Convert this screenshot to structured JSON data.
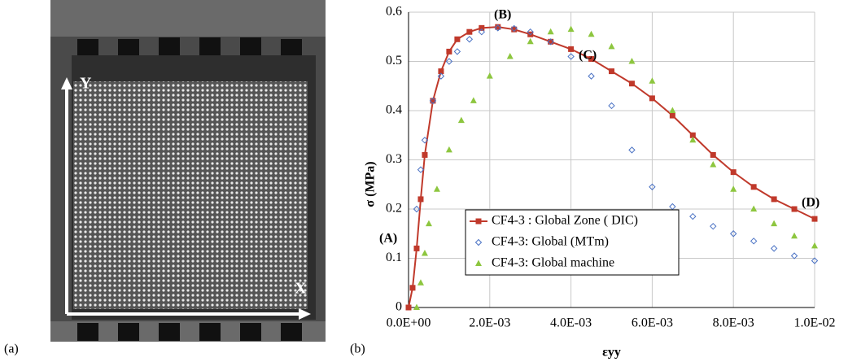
{
  "panel_a": {
    "label": "(a)",
    "axis_x": "X",
    "axis_y": "Y"
  },
  "chart_data": {
    "type": "scatter",
    "panel_label": "(b)",
    "x_label": "εyy",
    "y_label": "σ (MPa)",
    "annotations": [
      "(A)",
      "(B)",
      "(C)",
      "(D)"
    ],
    "xlim": [
      0,
      0.01
    ],
    "ylim": [
      0,
      0.6
    ],
    "xticks": [
      {
        "value": 0,
        "label": "0.0E+00"
      },
      {
        "value": 0.002,
        "label": "2.0E-03"
      },
      {
        "value": 0.004,
        "label": "4.0E-03"
      },
      {
        "value": 0.006,
        "label": "6.0E-03"
      },
      {
        "value": 0.008,
        "label": "8.0E-03"
      },
      {
        "value": 0.01,
        "label": "1.0E-02"
      }
    ],
    "yticks": [
      0,
      0.1,
      0.2,
      0.3,
      0.4,
      0.5,
      0.6
    ],
    "grid": true,
    "legend": "lower left",
    "series": [
      {
        "name": "CF4-3 : Global Zone ( DIC)",
        "color": "#c0392b",
        "marker": "square",
        "line": true,
        "x": [
          0,
          0.0001,
          0.0002,
          0.0003,
          0.0004,
          0.0006,
          0.0008,
          0.001,
          0.0012,
          0.0015,
          0.0018,
          0.0022,
          0.0026,
          0.003,
          0.0035,
          0.004,
          0.0045,
          0.005,
          0.0055,
          0.006,
          0.0065,
          0.007,
          0.0075,
          0.008,
          0.0085,
          0.009,
          0.0095,
          0.01
        ],
        "values": [
          0,
          0.04,
          0.12,
          0.22,
          0.31,
          0.42,
          0.48,
          0.52,
          0.545,
          0.56,
          0.568,
          0.57,
          0.565,
          0.555,
          0.54,
          0.525,
          0.505,
          0.48,
          0.455,
          0.425,
          0.39,
          0.35,
          0.31,
          0.275,
          0.245,
          0.22,
          0.2,
          0.18
        ]
      },
      {
        "name": "CF4-3: Global (MTm)",
        "color": "#4a72c4",
        "marker": "diamond",
        "line": false,
        "x": [
          0.0002,
          0.0003,
          0.0004,
          0.0006,
          0.0008,
          0.001,
          0.0012,
          0.0015,
          0.0018,
          0.0022,
          0.0026,
          0.003,
          0.0035,
          0.004,
          0.0045,
          0.005,
          0.0055,
          0.006,
          0.0065,
          0.007,
          0.0075,
          0.008,
          0.0085,
          0.009,
          0.0095,
          0.01
        ],
        "values": [
          0.2,
          0.28,
          0.34,
          0.42,
          0.47,
          0.5,
          0.52,
          0.545,
          0.56,
          0.568,
          0.567,
          0.56,
          0.54,
          0.51,
          0.47,
          0.41,
          0.32,
          0.245,
          0.205,
          0.185,
          0.165,
          0.15,
          0.135,
          0.12,
          0.105,
          0.095
        ]
      },
      {
        "name": "CF4-3: Global machine",
        "color": "#8dc63f",
        "marker": "triangle",
        "line": false,
        "x": [
          0.0002,
          0.0003,
          0.0004,
          0.0005,
          0.0007,
          0.001,
          0.0013,
          0.0016,
          0.002,
          0.0025,
          0.003,
          0.0035,
          0.004,
          0.0045,
          0.005,
          0.0055,
          0.006,
          0.0065,
          0.007,
          0.0075,
          0.008,
          0.0085,
          0.009,
          0.0095,
          0.01
        ],
        "values": [
          0,
          0.05,
          0.11,
          0.17,
          0.24,
          0.32,
          0.38,
          0.42,
          0.47,
          0.51,
          0.54,
          0.56,
          0.565,
          0.555,
          0.53,
          0.5,
          0.46,
          0.4,
          0.34,
          0.29,
          0.24,
          0.2,
          0.17,
          0.145,
          0.125
        ]
      }
    ]
  }
}
